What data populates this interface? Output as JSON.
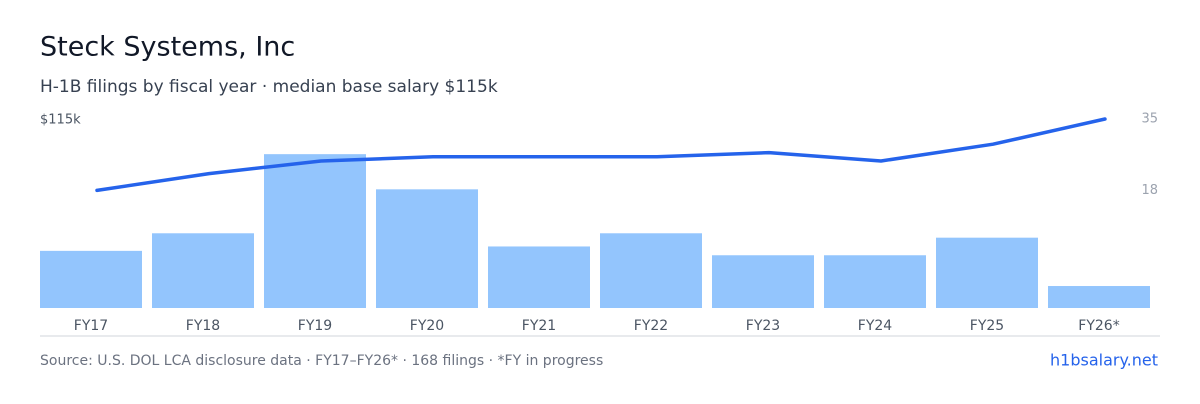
{
  "chart_data": {
    "type": "bar",
    "title": "Steck Systems, Inc",
    "subtitle": "H-1B filings by fiscal year · median base salary $115k",
    "annotation": "$115k",
    "categories": [
      "FY17",
      "FY18",
      "FY19",
      "FY20",
      "FY21",
      "FY22",
      "FY23",
      "FY24",
      "FY25",
      "FY26*"
    ],
    "ylim": [
      0,
      43
    ],
    "y2lim": [
      -10,
      35
    ],
    "y2ticks": [
      35,
      18
    ],
    "series": [
      {
        "type": "bar",
        "color": "#93c5fd",
        "values": [
          13,
          17,
          35,
          27,
          14,
          17,
          12,
          12,
          16,
          5
        ]
      },
      {
        "type": "line",
        "axis": "y2",
        "color": "#2563eb",
        "values": [
          18,
          22,
          25,
          26,
          26,
          26,
          27,
          25,
          29,
          35
        ]
      }
    ],
    "source": "Source: U.S. DOL LCA disclosure data · FY17–FY26* · 168 filings · *FY in progress",
    "link": "h1bsalary.net"
  }
}
